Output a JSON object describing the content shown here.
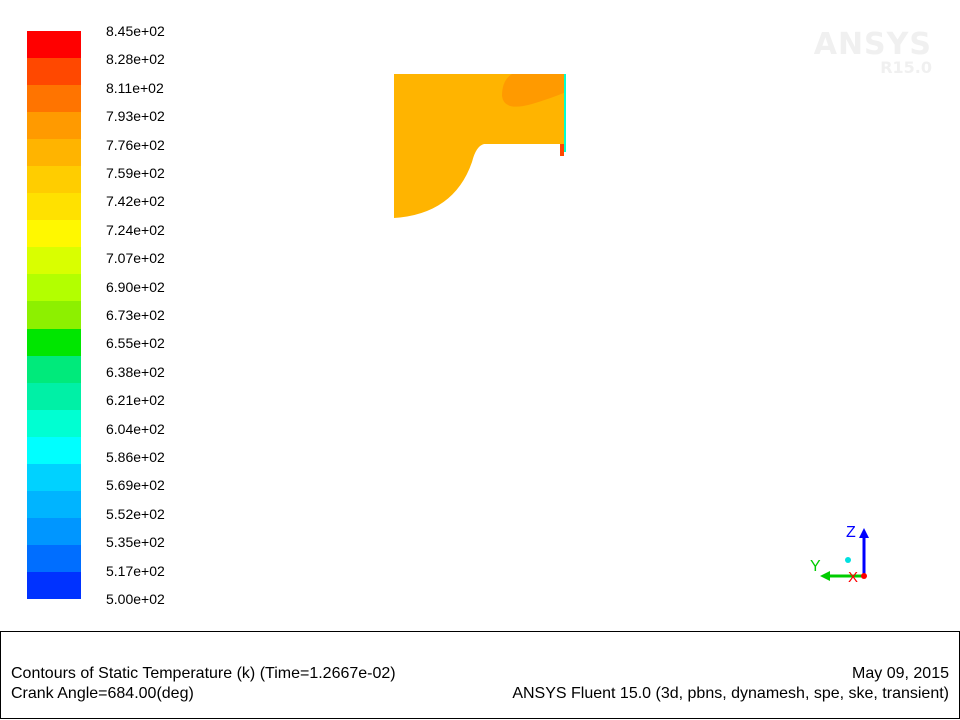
{
  "colorbar": {
    "labels": [
      "8.45e+02",
      "8.28e+02",
      "8.11e+02",
      "7.93e+02",
      "7.76e+02",
      "7.59e+02",
      "7.42e+02",
      "7.24e+02",
      "7.07e+02",
      "6.90e+02",
      "6.73e+02",
      "6.55e+02",
      "6.38e+02",
      "6.21e+02",
      "6.04e+02",
      "5.86e+02",
      "5.69e+02",
      "5.52e+02",
      "5.35e+02",
      "5.17e+02",
      "5.00e+02"
    ],
    "colors": [
      "#ff0000",
      "#ff4800",
      "#ff7400",
      "#ff9a00",
      "#ffb400",
      "#ffcd00",
      "#ffe100",
      "#fff800",
      "#d9ff00",
      "#b3ff00",
      "#8df000",
      "#00e600",
      "#00ea7b",
      "#00f0a6",
      "#00ffd2",
      "#00ffff",
      "#00d2ff",
      "#00b4ff",
      "#0096ff",
      "#006eff",
      "#0032ff"
    ]
  },
  "watermark": {
    "name": "ANSYS",
    "version": "R15.0"
  },
  "axes": {
    "z": "Z",
    "y": "Y",
    "x": "X",
    "z_color": "#0000ff",
    "y_color": "#00cc00",
    "x_color": "#ff0000"
  },
  "contour": {
    "main_color": "#ffb400",
    "highlight_color": "#ff9a00",
    "edge_color": "#ff4800",
    "wall_color": "#00ffd2"
  },
  "caption": {
    "line1_left": "Contours of Static Temperature (k)  (Time=1.2667e-02)",
    "line2_left": "Crank Angle=684.00(deg)",
    "line1_right": "May 09, 2015",
    "line2_right": "ANSYS Fluent 15.0 (3d, pbns, dynamesh, spe, ske, transient)"
  }
}
